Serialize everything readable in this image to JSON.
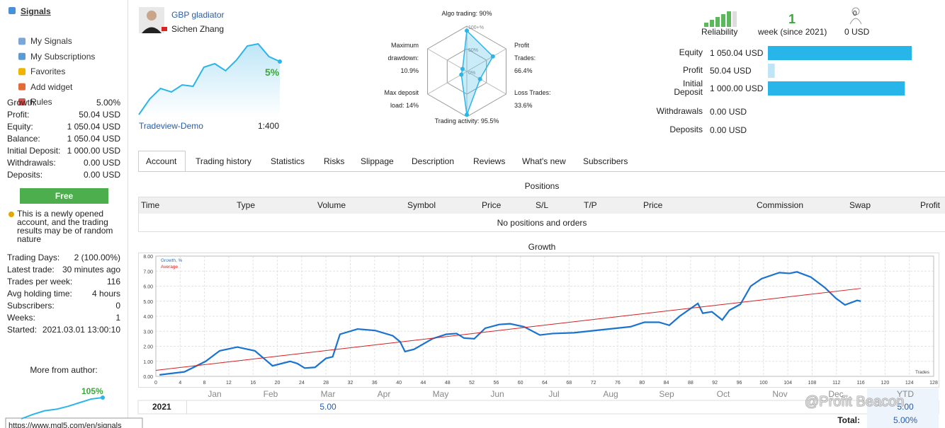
{
  "sidebar": {
    "menu": [
      "Signals",
      "My Signals",
      "My Subscriptions",
      "Favorites",
      "Add widget",
      "Rules"
    ],
    "stats": [
      [
        "Growth:",
        "5.00%"
      ],
      [
        "Profit:",
        "50.04 USD"
      ],
      [
        "Equity:",
        "1 050.04 USD"
      ],
      [
        "Balance:",
        "1 050.04 USD"
      ],
      [
        "Initial Deposit:",
        "1 000.00 USD"
      ],
      [
        "Withdrawals:",
        "0.00 USD"
      ],
      [
        "Deposits:",
        "0.00 USD"
      ]
    ],
    "button": "Free",
    "notice": "This is a newly opened account, and the trading results may be of random nature",
    "trading": [
      [
        "Trading Days:",
        "2 (100.00%)"
      ],
      [
        "Latest trade:",
        "30 minutes ago"
      ],
      [
        "Trades per week:",
        "116"
      ],
      [
        "Avg holding time:",
        "4 hours"
      ],
      [
        "Subscribers:",
        "0"
      ],
      [
        "Weeks:",
        "1"
      ],
      [
        "Started:",
        "2021.03.01 13:00:10"
      ]
    ],
    "more_title": "More from author:",
    "author_growth": {
      "label": "105%",
      "values": [
        0,
        6,
        11,
        13,
        17,
        22,
        27,
        29
      ]
    },
    "url": "https://www.mql5.com/en/signals"
  },
  "header": {
    "name": "GBP gladiator",
    "author": "Sichen Zhang",
    "growth_label": "5%",
    "spark": [
      3,
      25,
      40,
      35,
      45,
      43,
      70,
      75,
      65,
      80,
      100,
      103,
      85,
      78
    ],
    "server": "Tradeview-Demo",
    "leverage": "1:400"
  },
  "radar": {
    "axes": [
      {
        "lines": [
          "Algo trading: 90%"
        ],
        "value": 90
      },
      {
        "lines": [
          "Profit",
          "Trades:",
          "66.4%"
        ],
        "value": 66.4
      },
      {
        "lines": [
          "Loss Trades:",
          "33.6%"
        ],
        "value": 33.6
      },
      {
        "lines": [
          "Trading activity: 95.5%"
        ],
        "value": 95.5
      },
      {
        "lines": [
          "Max deposit",
          "load: 14%"
        ],
        "value": 14
      },
      {
        "lines": [
          "Maximum",
          "drawdown:",
          "10.9%"
        ],
        "value": 10.9
      }
    ],
    "rings": [
      {
        "value": 100,
        "label": "100+%"
      },
      {
        "value": 50,
        "label": "50%"
      },
      {
        "value": 0,
        "label": "0%"
      }
    ]
  },
  "summary": {
    "reliability": "Reliability",
    "weeks": "1",
    "weeks_label": "week (since 2021)",
    "subscribers": "0",
    "subscribers_funds": "0 USD",
    "rows": [
      {
        "label": "Equity",
        "value": 1050.04,
        "value_label": "1 050.04 USD"
      },
      {
        "label": "Profit",
        "value": 50.04,
        "value_label": "50.04 USD"
      },
      {
        "label": "Initial Deposit",
        "value": 1000,
        "value_label": "1 000.00 USD"
      },
      {
        "label": "Withdrawals",
        "value": 0,
        "value_label": "0.00 USD"
      },
      {
        "label": "Deposits",
        "value": 0,
        "value_label": "0.00 USD"
      }
    ]
  },
  "tabs": [
    "Account",
    "Trading history",
    "Statistics",
    "Risks",
    "Slippage",
    "Description",
    "Reviews",
    "What's new",
    "Subscribers"
  ],
  "positions": {
    "title": "Positions",
    "columns": [
      "Time",
      "Type",
      "Volume",
      "Symbol",
      "Price",
      "S/L",
      "T/P",
      "Price",
      "Commission",
      "Swap",
      "Profit"
    ],
    "empty": "No positions and orders"
  },
  "chart_data": {
    "type": "line",
    "title": "Growth",
    "x_label": "Trades",
    "grid": true,
    "series": [
      {
        "name": "Growth, %",
        "color": "#1a73d0",
        "x": [
          0.6,
          4.7,
          8.2,
          10.5,
          13.4,
          16.3,
          19.2,
          22.1,
          23.3,
          24.5,
          26.2,
          28,
          29.1,
          30.3,
          33.2,
          36.1,
          39,
          40.2,
          41,
          42.5,
          45.5,
          47.8,
          49.5,
          50.7,
          52.4,
          54.2,
          56.5,
          58.3,
          60.6,
          63.2,
          65.3,
          68.8,
          73.4,
          78.1,
          80.4,
          82.8,
          84.5,
          86.2,
          89.2,
          90,
          91.5,
          93.2,
          94.4,
          96.2,
          97.9,
          99.7,
          102.6,
          104.3,
          105.5,
          107.8,
          110.1,
          111.9,
          113.4,
          115.4,
          116
        ],
        "values": [
          0.1,
          0.3,
          1.0,
          1.7,
          1.95,
          1.7,
          0.7,
          1.0,
          0.85,
          0.55,
          0.6,
          1.2,
          1.3,
          2.8,
          3.15,
          3.05,
          2.7,
          2.3,
          1.65,
          1.8,
          2.5,
          2.8,
          2.85,
          2.55,
          2.5,
          3.2,
          3.45,
          3.5,
          3.3,
          2.75,
          2.85,
          2.9,
          3.1,
          3.3,
          3.6,
          3.6,
          3.4,
          4.0,
          4.85,
          4.2,
          4.3,
          3.75,
          4.4,
          4.8,
          6.0,
          6.5,
          6.9,
          6.85,
          6.95,
          6.6,
          5.9,
          5.2,
          4.75,
          5.05,
          5.0
        ]
      },
      {
        "name": "Average",
        "color": "#d42020",
        "x": [
          0,
          116
        ],
        "values": [
          0.4,
          5.85
        ]
      }
    ],
    "xlim": [
      0,
      128
    ],
    "xticks": [
      0,
      4,
      8,
      12,
      16,
      20,
      24,
      28,
      32,
      36,
      40,
      44,
      48,
      52,
      56,
      60,
      64,
      68,
      72,
      76,
      80,
      84,
      88,
      92,
      96,
      100,
      104,
      108,
      112,
      116,
      120,
      124,
      128
    ],
    "ylim": [
      0,
      8
    ],
    "yticks": [
      {
        "value": 0,
        "label": "0.00"
      },
      {
        "value": 1,
        "label": "1.00"
      },
      {
        "value": 2,
        "label": "2.00"
      },
      {
        "value": 3,
        "label": "3.00"
      },
      {
        "value": 4,
        "label": "4.00"
      },
      {
        "value": 5,
        "label": "5.00"
      },
      {
        "value": 6,
        "label": "6.00"
      },
      {
        "value": 7,
        "label": "7.00"
      },
      {
        "value": 8,
        "label": "8.00"
      }
    ]
  },
  "yearly": {
    "months": [
      "Jan",
      "Feb",
      "Mar",
      "Apr",
      "May",
      "Jun",
      "Jul",
      "Aug",
      "Sep",
      "Oct",
      "Nov",
      "Dec",
      "YTD"
    ],
    "rows": [
      {
        "year": "2021",
        "cells": [
          null,
          null,
          "5.00",
          null,
          null,
          null,
          null,
          null,
          null,
          null,
          null,
          null,
          "5.00"
        ]
      }
    ],
    "total_label": "Total:",
    "total": "5.00%"
  },
  "watermark": "@Profit Beacon"
}
